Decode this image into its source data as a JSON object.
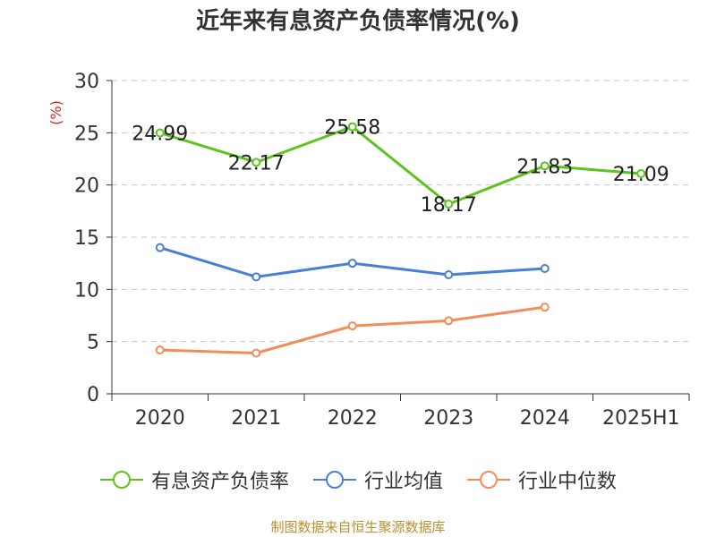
{
  "chart_data": {
    "type": "line",
    "title": "近年来有息资产负债率情况(%)",
    "ylabel": "(%)",
    "categories": [
      "2020",
      "2021",
      "2022",
      "2023",
      "2024",
      "2025H1"
    ],
    "ylim": [
      0,
      30
    ],
    "yticks": [
      "0",
      "5",
      "10",
      "15",
      "20",
      "25",
      "30"
    ],
    "grid": true,
    "legend_position": "bottom",
    "series": [
      {
        "name": "有息资产负债率",
        "color": "#5cc41d",
        "values": [
          24.99,
          22.17,
          25.58,
          18.17,
          21.83,
          21.09
        ],
        "labels": [
          "24.99",
          "22.17",
          "25.58",
          "18.17",
          "21.83",
          "21.09"
        ]
      },
      {
        "name": "行业均值",
        "color": "#4a7fd6",
        "values": [
          14.0,
          11.2,
          12.5,
          11.4,
          12.0,
          null
        ]
      },
      {
        "name": "行业中位数",
        "color": "#f28c5a",
        "values": [
          4.2,
          3.9,
          6.5,
          7.0,
          8.3,
          null
        ]
      }
    ]
  },
  "source": "制图数据来自恒生聚源数据库"
}
